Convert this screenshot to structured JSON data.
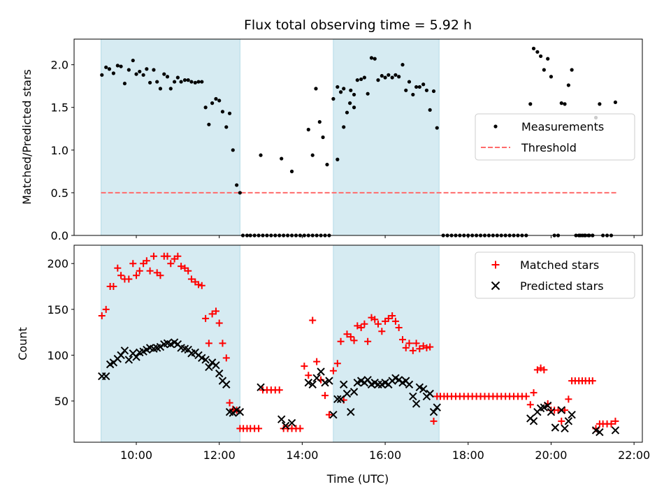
{
  "chart_data": [
    {
      "type": "scatter",
      "title": "Flux total observing time = 5.92 h",
      "xlabel": "",
      "ylabel": "Matched/Predicted stars",
      "xlim_hours": [
        8.5,
        22.2
      ],
      "ylim": [
        0,
        2.3
      ],
      "yticks": [
        "0.0",
        "0.5",
        "1.0",
        "1.5",
        "2.0"
      ],
      "shaded_intervals_hours": [
        [
          9.15,
          12.5
        ],
        [
          14.75,
          17.3
        ]
      ],
      "shade_color": "#add8e6",
      "legend_position": "center-right",
      "threshold": {
        "name": "Threshold",
        "y": 0.5,
        "x_range_hours": [
          9.15,
          21.6
        ],
        "color": "#ff6b6b"
      },
      "series": [
        {
          "name": "Measurements",
          "marker": "dot",
          "color": "#000000",
          "x_hours": [
            9.17,
            9.27,
            9.35,
            9.45,
            9.55,
            9.63,
            9.72,
            9.82,
            9.92,
            10.0,
            10.08,
            10.17,
            10.25,
            10.33,
            10.42,
            10.5,
            10.58,
            10.67,
            10.75,
            10.83,
            10.92,
            11.0,
            11.08,
            11.17,
            11.25,
            11.33,
            11.42,
            11.5,
            11.58,
            11.67,
            11.75,
            11.83,
            11.92,
            12.0,
            12.08,
            12.17,
            12.25,
            12.33,
            12.42,
            12.5,
            12.57,
            12.67,
            12.75,
            12.85,
            12.95,
            13.05,
            13.15,
            13.25,
            13.35,
            13.45,
            13.55,
            13.65,
            13.75,
            13.85,
            13.95,
            14.05,
            14.15,
            14.25,
            14.35,
            14.45,
            14.55,
            14.65,
            14.75,
            14.85,
            14.93,
            15.0,
            15.08,
            15.17,
            15.25,
            15.33,
            15.42,
            15.5,
            15.58,
            15.67,
            15.75,
            15.83,
            15.92,
            16.0,
            16.08,
            16.17,
            16.25,
            16.33,
            16.42,
            16.5,
            16.58,
            16.67,
            16.75,
            16.83,
            16.92,
            17.0,
            17.08,
            17.17,
            17.25,
            13.0,
            13.5,
            13.75,
            14.15,
            14.25,
            14.33,
            14.42,
            14.5,
            14.6,
            14.85,
            15.0,
            15.15,
            15.25,
            17.4,
            17.5,
            17.6,
            17.7,
            17.8,
            17.9,
            18.0,
            18.1,
            18.2,
            18.3,
            18.4,
            18.5,
            18.6,
            18.7,
            18.8,
            18.9,
            19.0,
            19.1,
            19.2,
            19.3,
            19.4,
            19.5,
            19.58,
            19.67,
            19.75,
            19.83,
            19.92,
            20.0,
            20.08,
            20.17,
            20.25,
            20.33,
            20.42,
            20.5,
            20.6,
            20.7,
            20.8,
            20.9,
            21.0,
            21.08,
            21.17,
            21.25,
            21.35,
            21.45,
            21.55,
            20.67,
            20.75,
            20.83,
            20.92,
            21.0
          ],
          "y": [
            1.88,
            1.97,
            1.95,
            1.9,
            1.99,
            1.98,
            1.78,
            1.94,
            2.05,
            1.89,
            1.92,
            1.88,
            1.95,
            1.79,
            1.94,
            1.8,
            1.72,
            1.89,
            1.86,
            1.72,
            1.8,
            1.85,
            1.8,
            1.82,
            1.82,
            1.8,
            1.79,
            1.8,
            1.8,
            1.5,
            1.3,
            1.55,
            1.6,
            1.58,
            1.45,
            1.27,
            1.43,
            1.0,
            0.59,
            0.5,
            0.0,
            0.0,
            0.0,
            0.0,
            0.0,
            0.0,
            0.0,
            0.0,
            0.0,
            0.0,
            0.0,
            0.0,
            0.0,
            0.0,
            0.0,
            0.0,
            0.0,
            0.0,
            0.0,
            0.0,
            0.0,
            0.0,
            1.6,
            1.74,
            1.68,
            1.27,
            1.44,
            1.7,
            1.65,
            1.82,
            1.83,
            1.85,
            1.66,
            2.08,
            2.07,
            1.82,
            1.87,
            1.85,
            1.88,
            1.85,
            1.88,
            1.86,
            2.0,
            1.7,
            1.8,
            1.65,
            1.74,
            1.74,
            1.77,
            1.7,
            1.47,
            1.69,
            1.26,
            0.94,
            0.9,
            0.75,
            1.24,
            0.94,
            1.72,
            1.33,
            1.15,
            0.83,
            0.89,
            1.72,
            1.55,
            1.5,
            0.0,
            0.0,
            0.0,
            0.0,
            0.0,
            0.0,
            0.0,
            0.0,
            0.0,
            0.0,
            0.0,
            0.0,
            0.0,
            0.0,
            0.0,
            0.0,
            0.0,
            0.0,
            0.0,
            0.0,
            0.0,
            1.54,
            2.19,
            2.15,
            2.1,
            1.94,
            2.07,
            1.86,
            0.0,
            0.0,
            1.55,
            1.54,
            1.76,
            1.94,
            0.0,
            0.0,
            0.0,
            0.0,
            0.0,
            1.38,
            1.54,
            0.0,
            0.0,
            0.0,
            1.56,
            0.0,
            0.0,
            0.0,
            0.0,
            0.0
          ]
        }
      ]
    },
    {
      "type": "scatter",
      "title": "",
      "xlabel": "Time (UTC)",
      "ylabel": "Count",
      "xlim_hours": [
        8.5,
        22.2
      ],
      "ylim": [
        5,
        220
      ],
      "xticks": [
        "10:00",
        "12:00",
        "14:00",
        "16:00",
        "18:00",
        "20:00",
        "22:00"
      ],
      "xticks_hours": [
        10,
        12,
        14,
        16,
        18,
        20,
        22
      ],
      "yticks": [
        "50",
        "100",
        "150",
        "200"
      ],
      "yticks_values": [
        50,
        100,
        150,
        200
      ],
      "shaded_intervals_hours": [
        [
          9.15,
          12.5
        ],
        [
          14.75,
          17.3
        ]
      ],
      "legend_position": "top-right",
      "series": [
        {
          "name": "Matched stars",
          "marker": "plus",
          "color": "#ff0000",
          "x_hours": [
            9.17,
            9.27,
            9.37,
            9.45,
            9.55,
            9.63,
            9.72,
            9.82,
            9.92,
            10.0,
            10.08,
            10.17,
            10.25,
            10.33,
            10.42,
            10.5,
            10.58,
            10.67,
            10.75,
            10.83,
            10.92,
            11.0,
            11.08,
            11.17,
            11.25,
            11.33,
            11.42,
            11.5,
            11.58,
            11.67,
            11.75,
            11.83,
            11.92,
            12.0,
            12.08,
            12.17,
            12.25,
            12.33,
            12.42,
            12.5,
            12.58,
            12.67,
            12.75,
            12.85,
            12.95,
            13.05,
            13.15,
            13.25,
            13.35,
            13.45,
            13.55,
            13.65,
            13.75,
            13.85,
            13.95,
            14.05,
            14.15,
            14.25,
            14.35,
            14.45,
            14.55,
            14.65,
            14.75,
            14.85,
            14.93,
            15.0,
            15.08,
            15.17,
            15.25,
            15.33,
            15.42,
            15.5,
            15.58,
            15.67,
            15.75,
            15.83,
            15.92,
            16.0,
            16.08,
            16.17,
            16.25,
            16.33,
            16.42,
            16.5,
            16.58,
            16.67,
            16.75,
            16.83,
            16.92,
            17.0,
            17.08,
            17.17,
            17.25,
            17.33,
            17.42,
            17.5,
            17.6,
            17.7,
            17.8,
            17.9,
            18.0,
            18.1,
            18.2,
            18.3,
            18.4,
            18.5,
            18.6,
            18.7,
            18.8,
            18.9,
            19.0,
            19.1,
            19.2,
            19.3,
            19.4,
            19.5,
            19.58,
            19.67,
            19.75,
            19.83,
            19.92,
            20.0,
            20.08,
            20.17,
            20.25,
            20.33,
            20.42,
            20.5,
            20.58,
            20.67,
            20.75,
            20.83,
            20.92,
            21.0,
            21.08,
            21.17,
            21.25,
            21.35,
            21.45,
            21.55
          ],
          "values": [
            143,
            150,
            175,
            175,
            195,
            187,
            183,
            183,
            200,
            187,
            192,
            200,
            203,
            192,
            208,
            190,
            187,
            208,
            208,
            200,
            205,
            208,
            197,
            195,
            192,
            183,
            180,
            177,
            176,
            140,
            113,
            145,
            148,
            135,
            113,
            97,
            48,
            41,
            40,
            20,
            20,
            20,
            20,
            20,
            20,
            62,
            62,
            62,
            62,
            62,
            20,
            20,
            20,
            20,
            20,
            88,
            78,
            138,
            93,
            73,
            56,
            35,
            83,
            91,
            115,
            51,
            123,
            120,
            116,
            132,
            130,
            134,
            115,
            141,
            139,
            134,
            126,
            137,
            140,
            143,
            137,
            130,
            117,
            108,
            113,
            105,
            113,
            107,
            110,
            108,
            109,
            28,
            55,
            55,
            55,
            55,
            55,
            55,
            55,
            55,
            55,
            55,
            55,
            55,
            55,
            55,
            55,
            55,
            55,
            55,
            55,
            55,
            55,
            55,
            55,
            46,
            59,
            84,
            86,
            84,
            47,
            40,
            40,
            40,
            28,
            40,
            52,
            72,
            72,
            72,
            72,
            72,
            72,
            72,
            20,
            25,
            25,
            25,
            25,
            28
          ]
        },
        {
          "name": "Predicted stars",
          "marker": "x",
          "color": "#000000",
          "x_hours": [
            9.17,
            9.27,
            9.37,
            9.45,
            9.55,
            9.63,
            9.72,
            9.82,
            9.92,
            10.0,
            10.08,
            10.17,
            10.25,
            10.33,
            10.42,
            10.5,
            10.58,
            10.67,
            10.75,
            10.83,
            10.92,
            11.0,
            11.08,
            11.17,
            11.25,
            11.33,
            11.42,
            11.5,
            11.58,
            11.67,
            11.75,
            11.83,
            11.92,
            12.0,
            12.08,
            12.17,
            12.25,
            12.33,
            12.42,
            12.5,
            13.0,
            13.5,
            13.6,
            13.75,
            14.15,
            14.25,
            14.35,
            14.45,
            14.55,
            14.65,
            14.75,
            14.85,
            14.93,
            15.0,
            15.08,
            15.17,
            15.25,
            15.33,
            15.42,
            15.5,
            15.58,
            15.67,
            15.75,
            15.83,
            15.92,
            16.0,
            16.08,
            16.17,
            16.25,
            16.33,
            16.42,
            16.5,
            16.58,
            16.67,
            16.75,
            16.83,
            16.92,
            17.0,
            17.08,
            17.17,
            17.25,
            19.5,
            19.58,
            19.67,
            19.75,
            19.83,
            19.92,
            20.0,
            20.1,
            20.25,
            20.33,
            20.42,
            20.5,
            21.08,
            21.17,
            21.55
          ],
          "values": [
            77,
            77,
            90,
            92,
            96,
            100,
            105,
            95,
            102,
            98,
            103,
            104,
            106,
            108,
            107,
            108,
            109,
            112,
            113,
            112,
            114,
            112,
            108,
            107,
            106,
            102,
            103,
            100,
            97,
            95,
            87,
            92,
            89,
            80,
            72,
            68,
            38,
            37,
            40,
            38,
            65,
            30,
            23,
            26,
            70,
            68,
            75,
            82,
            70,
            72,
            35,
            52,
            52,
            68,
            58,
            38,
            60,
            70,
            72,
            70,
            73,
            68,
            70,
            68,
            68,
            70,
            68,
            72,
            75,
            73,
            70,
            72,
            68,
            55,
            47,
            65,
            63,
            55,
            58,
            38,
            43,
            31,
            28,
            38,
            42,
            43,
            45,
            38,
            21,
            40,
            20,
            28,
            35,
            18,
            16,
            18
          ]
        }
      ]
    }
  ]
}
